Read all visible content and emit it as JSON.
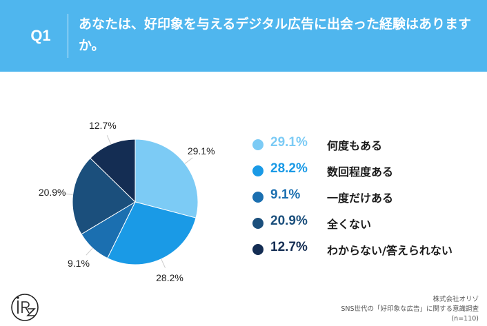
{
  "header": {
    "q_label": "Q1",
    "question": "あなたは、好印象を与えるデジタル広告に出会った経験はありますか。",
    "bg_color": "#4fb6ee"
  },
  "chart_data": {
    "type": "pie",
    "slices": [
      {
        "label": "何度もある",
        "value": 29.1,
        "display": "29.1%",
        "color": "#7ccbf5"
      },
      {
        "label": "数回程度ある",
        "value": 28.2,
        "display": "28.2%",
        "color": "#1a9ae6"
      },
      {
        "label": "一度だけある",
        "value": 9.1,
        "display": "9.1%",
        "color": "#1b6fb0"
      },
      {
        "label": "全くない",
        "value": 20.9,
        "display": "20.9%",
        "color": "#1b4f7c"
      },
      {
        "label": "わからない/答えられない",
        "value": 12.7,
        "display": "12.7%",
        "color": "#142d53"
      }
    ],
    "legend_position": "right"
  },
  "logo": {
    "text": "iRZ"
  },
  "source": {
    "company": "株式会社オリゾ",
    "survey": "SNS世代の「好印象な広告」に関する意識調査",
    "sample": "(n=110)"
  }
}
